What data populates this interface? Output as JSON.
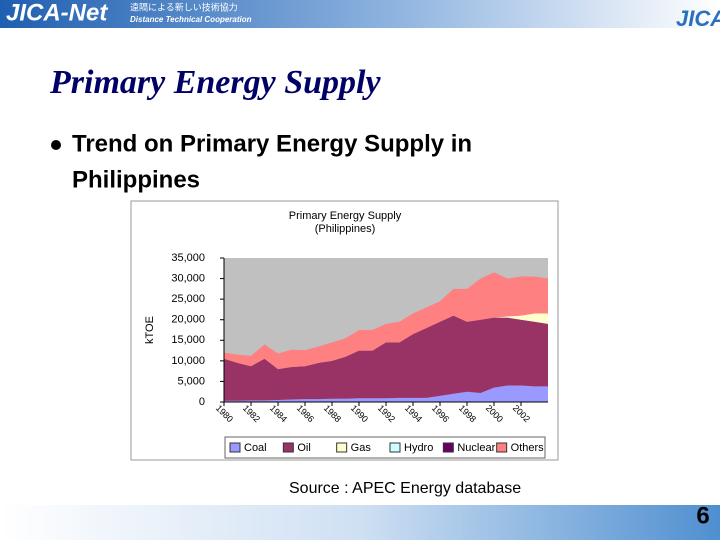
{
  "header": {
    "brand": "JICA-Net",
    "tagline_ja": "遠隔による新しい技術協力",
    "tagline_en": "Distance Technical Cooperation",
    "logo": "JICA"
  },
  "slide": {
    "title": "Primary Energy Supply",
    "bullet_lines": [
      "Trend on Primary Energy Supply in",
      "Philippines"
    ],
    "source": "Source : APEC Energy database",
    "page_number": "6"
  },
  "chart_data": {
    "type": "area",
    "stacked": true,
    "title": "Primary Energy Supply",
    "subtitle": "(Philippines)",
    "y_label": "kTOE",
    "x": [
      1980,
      1981,
      1982,
      1983,
      1984,
      1985,
      1986,
      1987,
      1988,
      1989,
      1990,
      1991,
      1992,
      1993,
      1994,
      1995,
      1996,
      1997,
      1998,
      1999,
      2000,
      2001,
      2002,
      2003,
      2004
    ],
    "xlim": [
      1980,
      2004
    ],
    "xticks": [
      1980,
      1982,
      1984,
      1986,
      1988,
      1990,
      1992,
      1994,
      1996,
      1998,
      2000,
      2002
    ],
    "ylim": [
      0,
      35000
    ],
    "yticks": [
      0,
      {
        "value": 5000,
        "label": "5,000"
      },
      {
        "value": 10000,
        "label": "10,000"
      },
      {
        "value": 15000,
        "label": "15,000"
      },
      {
        "value": 20000,
        "label": "20,000"
      },
      {
        "value": 25000,
        "label": "25,000"
      },
      {
        "value": 30000,
        "label": "30,000"
      },
      {
        "value": 35000,
        "label": "35,000"
      }
    ],
    "grid": false,
    "background": "#c0c0c0",
    "legend": "bottom",
    "series": [
      {
        "name": "Coal",
        "color": "#9999ff",
        "values": [
          300,
          300,
          400,
          400,
          500,
          600,
          700,
          700,
          800,
          800,
          900,
          900,
          900,
          1000,
          1000,
          1000,
          1500,
          2000,
          2500,
          2200,
          3500,
          4000,
          4000,
          3800,
          3800
        ]
      },
      {
        "name": "Oil",
        "color": "#993366",
        "values": [
          10200,
          9200,
          8300,
          10100,
          7500,
          7900,
          8000,
          8800,
          9200,
          10200,
          11600,
          11600,
          13600,
          13500,
          15500,
          17000,
          18000,
          19000,
          17000,
          17800,
          17000,
          16500,
          16000,
          15700,
          15200
        ]
      },
      {
        "name": "Gas",
        "color": "#ffffcc",
        "values": [
          0,
          0,
          0,
          0,
          0,
          0,
          0,
          0,
          0,
          0,
          0,
          0,
          0,
          0,
          0,
          0,
          0,
          0,
          0,
          0,
          0,
          300,
          1000,
          2000,
          2500
        ]
      },
      {
        "name": "Hydro",
        "color": "#ccffff",
        "values": [
          0,
          0,
          0,
          0,
          0,
          0,
          0,
          0,
          0,
          0,
          0,
          0,
          0,
          0,
          0,
          0,
          0,
          0,
          0,
          0,
          0,
          0,
          0,
          0,
          0
        ]
      },
      {
        "name": "Nuclear",
        "color": "#660066",
        "values": [
          0,
          0,
          0,
          0,
          0,
          0,
          0,
          0,
          0,
          0,
          0,
          0,
          0,
          0,
          0,
          0,
          0,
          0,
          0,
          0,
          0,
          0,
          0,
          0,
          0
        ]
      },
      {
        "name": "Others",
        "color": "#ff8080",
        "values": [
          1500,
          2000,
          2500,
          3500,
          3800,
          4200,
          3900,
          4000,
          4500,
          4500,
          5000,
          5000,
          4500,
          5000,
          5000,
          5000,
          5000,
          6500,
          8000,
          10000,
          11000,
          9200,
          9500,
          9000,
          8500
        ]
      }
    ]
  }
}
